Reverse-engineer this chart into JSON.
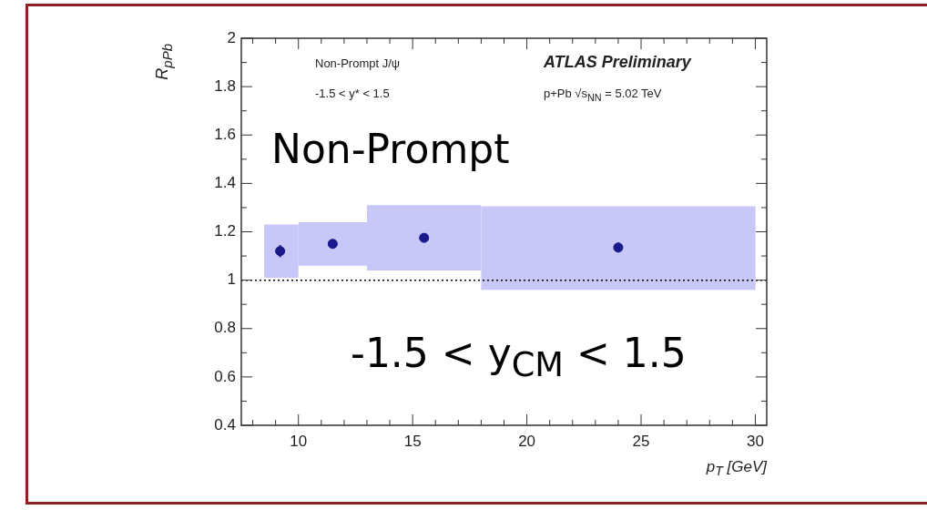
{
  "chart_data": {
    "type": "scatter",
    "xlabel": "p$_{T}$ [GeV]",
    "ylabel": "R$_{pPb}$",
    "xlim": [
      7.5,
      30.5
    ],
    "ylim": [
      0.4,
      2
    ],
    "xticks": [
      {
        "value": 8,
        "label": null
      },
      {
        "value": 9,
        "label": null
      },
      10,
      {
        "value": 11,
        "label": null
      },
      {
        "value": 12,
        "label": null
      },
      {
        "value": 13,
        "label": null
      },
      {
        "value": 14,
        "label": null
      },
      15,
      {
        "value": 16,
        "label": null
      },
      {
        "value": 17,
        "label": null
      },
      {
        "value": 18,
        "label": null
      },
      {
        "value": 19,
        "label": null
      },
      20,
      {
        "value": 21,
        "label": null
      },
      {
        "value": 22,
        "label": null
      },
      {
        "value": 23,
        "label": null
      },
      {
        "value": 24,
        "label": null
      },
      25,
      {
        "value": 26,
        "label": null
      },
      {
        "value": 27,
        "label": null
      },
      {
        "value": 28,
        "label": null
      },
      {
        "value": 29,
        "label": null
      },
      30
    ],
    "yticks": [
      0.4,
      {
        "value": 0.5,
        "label": null
      },
      0.6,
      {
        "value": 0.7,
        "label": null
      },
      0.8,
      {
        "value": 0.9,
        "label": null
      },
      1,
      {
        "value": 1.1,
        "label": null
      },
      1.2,
      {
        "value": 1.3,
        "label": null
      },
      1.4,
      {
        "value": 1.5,
        "label": null
      },
      1.6,
      {
        "value": 1.7,
        "label": null
      },
      1.8,
      {
        "value": 1.9,
        "label": null
      },
      2
    ],
    "series": [
      {
        "type": "step",
        "color": "#c8c8f8",
        "x": [
          8.5,
          10,
          13,
          18,
          30
        ],
        "values": [
          null,
          null,
          null,
          null,
          null
        ],
        "lower": [
          1.01,
          1.06,
          1.04,
          0.96,
          0.96
        ],
        "upper": [
          1.23,
          1.24,
          1.31,
          1.305,
          1.305
        ]
      },
      {
        "color": "#1a1a8c",
        "x": [
          9.2,
          11.5,
          15.5,
          24
        ],
        "values": [
          1.12,
          1.15,
          1.175,
          1.135
        ],
        "errors": [
          0.025,
          0.015,
          0.015,
          0.02
        ]
      }
    ],
    "marker": "circle",
    "grid": false,
    "legend": false,
    "ref_lines": [
      {
        "axis": "y",
        "value": 1,
        "color": "#000000",
        "line_style": "dotted"
      }
    ],
    "annotations": [
      {
        "text": "Non-Prompt J/ψ"
      },
      {
        "text": "-1.5 < y* < 1.5"
      },
      {
        "text": "ATLAS Preliminary"
      },
      {
        "text": "p+Pb √s$_{NN}$ = 5.02 TeV"
      },
      {
        "text": "Non-Prompt"
      },
      {
        "text": "-1.5 < y$_{CM}$ < 1.5"
      }
    ]
  }
}
